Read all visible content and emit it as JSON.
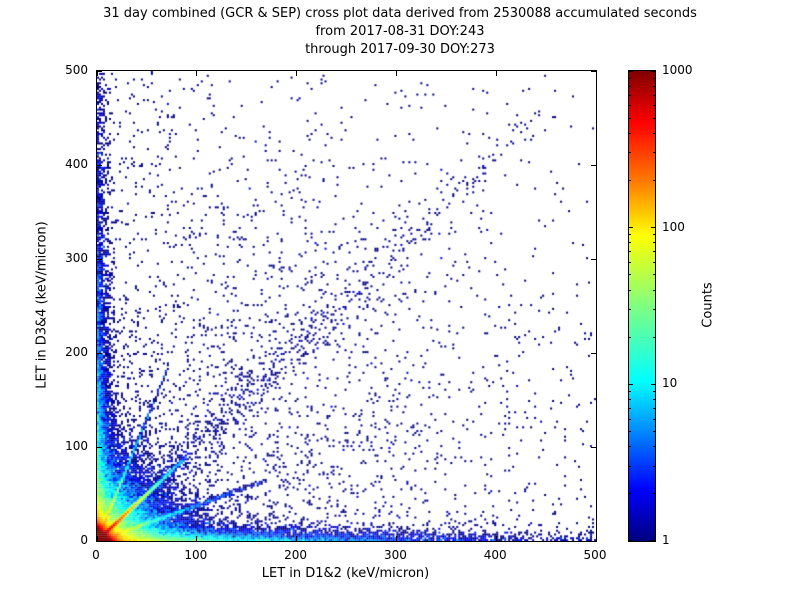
{
  "chart_data": {
    "type": "heatmap",
    "title": "31 day combined (GCR & SEP) cross plot data derived from 2530088 accumulated seconds",
    "subtitle_from": "from 2017-08-31 DOY:243",
    "subtitle_through": "through 2017-09-30 DOY:273",
    "accumulated_seconds": 2530088,
    "date_from": "2017-08-31",
    "doy_from": 243,
    "date_through": "2017-09-30",
    "doy_through": 273,
    "xlabel": "LET in D1&2 (keV/micron)",
    "ylabel": "LET in D3&4 (keV/micron)",
    "xlim": [
      0,
      500
    ],
    "ylim": [
      0,
      500
    ],
    "xticks": [
      0,
      100,
      200,
      300,
      400,
      500
    ],
    "yticks": [
      0,
      100,
      200,
      300,
      400,
      500
    ],
    "grid": false,
    "background_color": "#ffffff",
    "point_color_min": "#00007f",
    "bin_size_kev_per_micron": 2,
    "colorbar": {
      "label": "Counts",
      "scale": "log",
      "min": 1,
      "max": 1000,
      "ticks": [
        1,
        10,
        100,
        1000
      ],
      "colormap": "jet"
    },
    "distribution": {
      "description": "2D histogram of coincident LET events: very dense hot (red, ~1000 counts/bin) core at the origin, cyan-green diagonal ridge y=x out to ~80 keV/micron, colored bands hugging both axes fading with distance, fainter radial streaks above and below the diagonal, a sparse broad diagonal band of single counts reaching (450,460), and isolated single-count navy points scattered over the full 0-500 range.",
      "seed": 42,
      "components": [
        {
          "name": "origin-core",
          "kind": "exp2d",
          "n": 160000,
          "scale_x": 3.5,
          "scale_y": 3.5
        },
        {
          "name": "low-let-haze",
          "kind": "exp2d",
          "n": 30000,
          "scale_x": 22,
          "scale_y": 22
        },
        {
          "name": "d12-axis-band",
          "kind": "exp2d",
          "n": 9000,
          "scale_x": 120,
          "scale_y": 5
        },
        {
          "name": "d34-axis-band",
          "kind": "exp2d",
          "n": 6000,
          "scale_x": 5,
          "scale_y": 140
        },
        {
          "name": "coincidence-diagonal",
          "kind": "ridge",
          "n": 14000,
          "slope": 1.0,
          "t_scale": 18,
          "t_max": 90,
          "sigma": 1.2
        },
        {
          "name": "diagonal-band-high",
          "kind": "ridge",
          "n": 800,
          "slope": 1.03,
          "t_scale": 170,
          "t_max": 460,
          "sigma": 14
        },
        {
          "name": "steep-streak",
          "kind": "ridge",
          "n": 2200,
          "slope": 2.6,
          "t_scale": 16,
          "t_max": 70,
          "sigma": 1.4
        },
        {
          "name": "shallow-streak",
          "kind": "ridge",
          "n": 2200,
          "slope": 0.38,
          "t_scale": 45,
          "t_max": 170,
          "sigma": 1.4
        },
        {
          "name": "sparse-background",
          "kind": "halfnormal2d",
          "n": 2800,
          "sigma_x": 260,
          "sigma_y": 260
        }
      ]
    }
  }
}
